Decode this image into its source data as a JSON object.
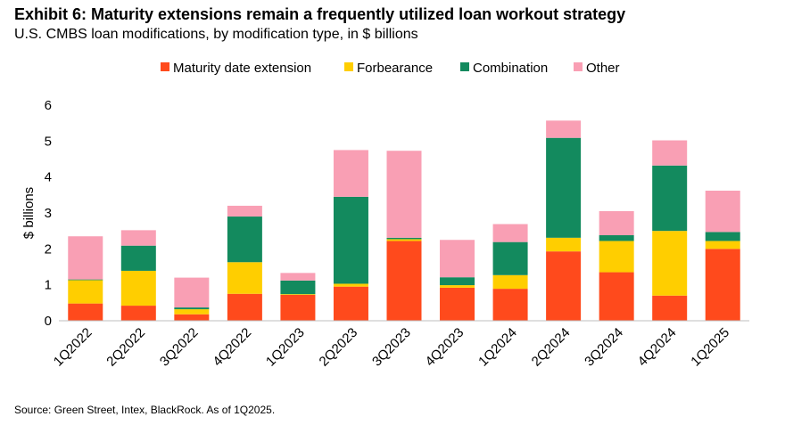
{
  "title": "Exhibit 6: Maturity extensions remain a frequently utilized loan workout strategy",
  "subtitle": "U.S. CMBS loan modifications, by modification type, in $ billions",
  "source": "Source: Green Street, Intex, BlackRock. As of 1Q2025.",
  "chart_data": {
    "type": "bar",
    "stacked": true,
    "ylabel": "$ billions",
    "ylim": [
      0,
      6
    ],
    "yticks": [
      0,
      1,
      2,
      3,
      4,
      5,
      6
    ],
    "grid": false,
    "legend_position": "top",
    "categories": [
      "1Q2022",
      "2Q2022",
      "3Q2022",
      "4Q2022",
      "1Q2023",
      "2Q2023",
      "3Q2023",
      "4Q2023",
      "1Q2024",
      "2Q2024",
      "3Q2024",
      "4Q2024",
      "1Q2025"
    ],
    "series": [
      {
        "name": "Maturity date extension",
        "color": "#ff4a1c",
        "values": [
          0.48,
          0.42,
          0.18,
          0.75,
          0.72,
          0.95,
          2.22,
          0.92,
          0.89,
          1.93,
          1.35,
          0.7,
          2.0
        ]
      },
      {
        "name": "Forbearance",
        "color": "#ffce00",
        "values": [
          0.65,
          0.97,
          0.14,
          0.88,
          0.02,
          0.08,
          0.05,
          0.07,
          0.38,
          0.38,
          0.87,
          1.8,
          0.22
        ]
      },
      {
        "name": "Combination",
        "color": "#138a5e",
        "values": [
          0.02,
          0.7,
          0.05,
          1.27,
          0.38,
          2.42,
          0.04,
          0.22,
          0.92,
          2.78,
          0.16,
          1.82,
          0.25
        ]
      },
      {
        "name": "Other",
        "color": "#f99fb4",
        "values": [
          1.2,
          0.43,
          0.83,
          0.3,
          0.21,
          1.3,
          2.42,
          1.04,
          0.5,
          0.48,
          0.67,
          0.7,
          1.15
        ]
      }
    ]
  }
}
